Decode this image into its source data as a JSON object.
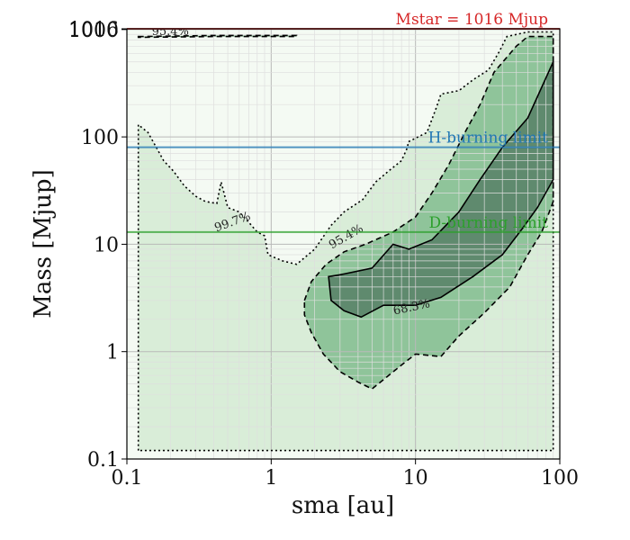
{
  "chart_data": {
    "type": "contour",
    "xlabel": "sma [au]",
    "ylabel": "Mass [Mjup]",
    "xscale": "log",
    "yscale": "log",
    "xlim": [
      0.1,
      100
    ],
    "ylim": [
      0.1,
      1016
    ],
    "xticks": [
      {
        "value": 0.1,
        "label": "0.1"
      },
      {
        "value": 1,
        "label": "1"
      },
      {
        "value": 10,
        "label": "10"
      },
      {
        "value": 100,
        "label": "100"
      }
    ],
    "yticks": [
      {
        "value": 0.1,
        "label": "0.1"
      },
      {
        "value": 1,
        "label": "1"
      },
      {
        "value": 10,
        "label": "10"
      },
      {
        "value": 100,
        "label": "100"
      },
      {
        "value": 1000,
        "label": "1000"
      },
      {
        "value": 1016,
        "label": "1016"
      }
    ],
    "grid": true,
    "limit_lines": [
      {
        "name": "Mstar = 1016 Mjup",
        "y": 1016,
        "color": "#d62728"
      },
      {
        "name": "H-burning limit",
        "y": 80,
        "color": "#1f77b4"
      },
      {
        "name": "D-burning limit",
        "y": 13,
        "color": "#2ca02c"
      }
    ],
    "contour_levels": [
      {
        "label": "68.3%",
        "linestyle": "solid",
        "fill": "#5f8a6e",
        "polygon": [
          [
            2.5,
            5
          ],
          [
            3,
            5.2
          ],
          [
            5,
            6
          ],
          [
            7,
            10
          ],
          [
            9,
            9
          ],
          [
            13,
            11
          ],
          [
            20,
            20
          ],
          [
            28,
            40
          ],
          [
            40,
            80
          ],
          [
            60,
            150
          ],
          [
            90,
            500
          ],
          [
            90,
            40
          ],
          [
            70,
            22
          ],
          [
            55,
            14
          ],
          [
            40,
            8
          ],
          [
            25,
            5
          ],
          [
            15,
            3.2
          ],
          [
            10,
            2.7
          ],
          [
            6,
            2.7
          ],
          [
            4.2,
            2.1
          ],
          [
            3.2,
            2.4
          ],
          [
            2.6,
            3
          ]
        ]
      },
      {
        "label": "95.4%",
        "linestyle": "dashed",
        "fill": "#8fc49a",
        "polygon": [
          [
            1.7,
            3
          ],
          [
            1.9,
            4.5
          ],
          [
            2.4,
            6.5
          ],
          [
            3.2,
            8.5
          ],
          [
            4.5,
            10
          ],
          [
            7,
            13
          ],
          [
            10,
            18
          ],
          [
            13,
            30
          ],
          [
            17,
            55
          ],
          [
            22,
            110
          ],
          [
            28,
            200
          ],
          [
            35,
            400
          ],
          [
            50,
            700
          ],
          [
            60,
            860
          ],
          [
            90,
            860
          ],
          [
            90,
            25
          ],
          [
            75,
            13
          ],
          [
            60,
            8
          ],
          [
            45,
            4
          ],
          [
            30,
            2.3
          ],
          [
            20,
            1.4
          ],
          [
            15,
            0.9
          ],
          [
            10,
            0.95
          ],
          [
            8,
            0.75
          ],
          [
            5,
            0.45
          ],
          [
            4,
            0.52
          ],
          [
            3,
            0.65
          ],
          [
            2.3,
            0.95
          ],
          [
            1.9,
            1.5
          ],
          [
            1.7,
            2.2
          ]
        ]
      },
      {
        "label": "95.4%",
        "linestyle": "dashed",
        "fill": "#8fc49a",
        "polygon": [
          [
            0.12,
            860
          ],
          [
            0.4,
            880
          ],
          [
            1.5,
            880
          ],
          [
            1.5,
            860
          ],
          [
            0.4,
            860
          ],
          [
            0.12,
            845
          ]
        ]
      },
      {
        "label": "99.7%",
        "linestyle": "dotted",
        "fill": "#d9edd8",
        "polygon": [
          [
            0.12,
            0.12
          ],
          [
            0.12,
            130
          ],
          [
            0.14,
            110
          ],
          [
            0.18,
            60
          ],
          [
            0.21,
            48
          ],
          [
            0.25,
            35
          ],
          [
            0.3,
            28
          ],
          [
            0.35,
            25
          ],
          [
            0.42,
            24
          ],
          [
            0.45,
            38
          ],
          [
            0.5,
            22
          ],
          [
            0.6,
            20
          ],
          [
            0.7,
            16
          ],
          [
            0.8,
            13
          ],
          [
            0.9,
            12
          ],
          [
            0.95,
            8
          ],
          [
            1.2,
            7
          ],
          [
            1.5,
            6.5
          ],
          [
            2.0,
            9
          ],
          [
            2.6,
            15
          ],
          [
            3.2,
            20
          ],
          [
            4.3,
            26
          ],
          [
            5.3,
            38
          ],
          [
            6.5,
            48
          ],
          [
            8,
            60
          ],
          [
            8.8,
            80
          ],
          [
            8.9,
            90
          ],
          [
            12,
            110
          ],
          [
            14,
            190
          ],
          [
            15,
            250
          ],
          [
            20,
            270
          ],
          [
            25,
            340
          ],
          [
            32,
            420
          ],
          [
            38,
            620
          ],
          [
            43,
            860
          ],
          [
            60,
            950
          ],
          [
            90,
            950
          ],
          [
            90,
            0.12
          ]
        ]
      }
    ],
    "contour_labels": [
      {
        "text": "68.3%",
        "x": 9.5,
        "y": 2.4,
        "angle": -12
      },
      {
        "text": "95.4%",
        "x": 3.4,
        "y": 11,
        "angle": -30
      },
      {
        "text": "95.4%",
        "x": 0.2,
        "y": 890,
        "angle": 0
      },
      {
        "text": "99.7%",
        "x": 0.55,
        "y": 15,
        "angle": -20
      }
    ]
  }
}
